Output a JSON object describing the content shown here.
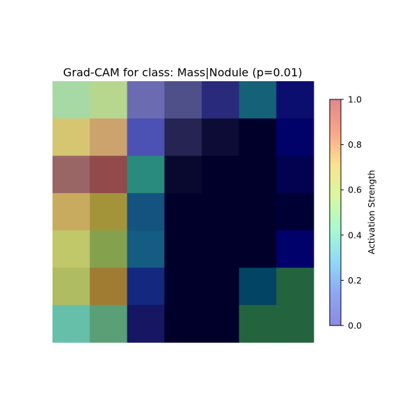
{
  "chart_data": {
    "type": "heatmap",
    "title": "Grad-CAM for class: Mass|Nodule (p=0.01)",
    "rows": 7,
    "cols": 7,
    "cell_colors": [
      [
        "#a6d9a4",
        "#b7d78e",
        "#6b6bb1",
        "#4f4f8a",
        "#2a2a7d",
        "#146178",
        "#0b0e6e"
      ],
      [
        "#d6c672",
        "#cca26d",
        "#4c52b4",
        "#262452",
        "#0c0c37",
        "#00002a",
        "#01016a"
      ],
      [
        "#9a6665",
        "#924a4a",
        "#288b7e",
        "#09092f",
        "#00002a",
        "#00002a",
        "#020250"
      ],
      [
        "#c9ab5f",
        "#a3943a",
        "#145280",
        "#00002a",
        "#00002a",
        "#00002a",
        "#000034"
      ],
      [
        "#c0c869",
        "#84a14e",
        "#145c81",
        "#00002a",
        "#00002a",
        "#00002a",
        "#01016b"
      ],
      [
        "#afbc61",
        "#a07c33",
        "#13287e",
        "#00002a",
        "#00002a",
        "#014463",
        "#23643e"
      ],
      [
        "#65bfa9",
        "#5a9f76",
        "#161663",
        "#00002a",
        "#00002a",
        "#23643e",
        "#23643e"
      ]
    ],
    "colorbar": {
      "label": "Activation Strength",
      "ticks": [
        "0.0",
        "0.2",
        "0.4",
        "0.6",
        "0.8",
        "1.0"
      ],
      "range": [
        0.0,
        1.0
      ],
      "gradient": [
        "#8b8be2",
        "#8ea6f3",
        "#8fdbfa",
        "#a8fbd0",
        "#d9f7a0",
        "#fbe28e",
        "#f8a58a",
        "#e0888c"
      ]
    }
  }
}
